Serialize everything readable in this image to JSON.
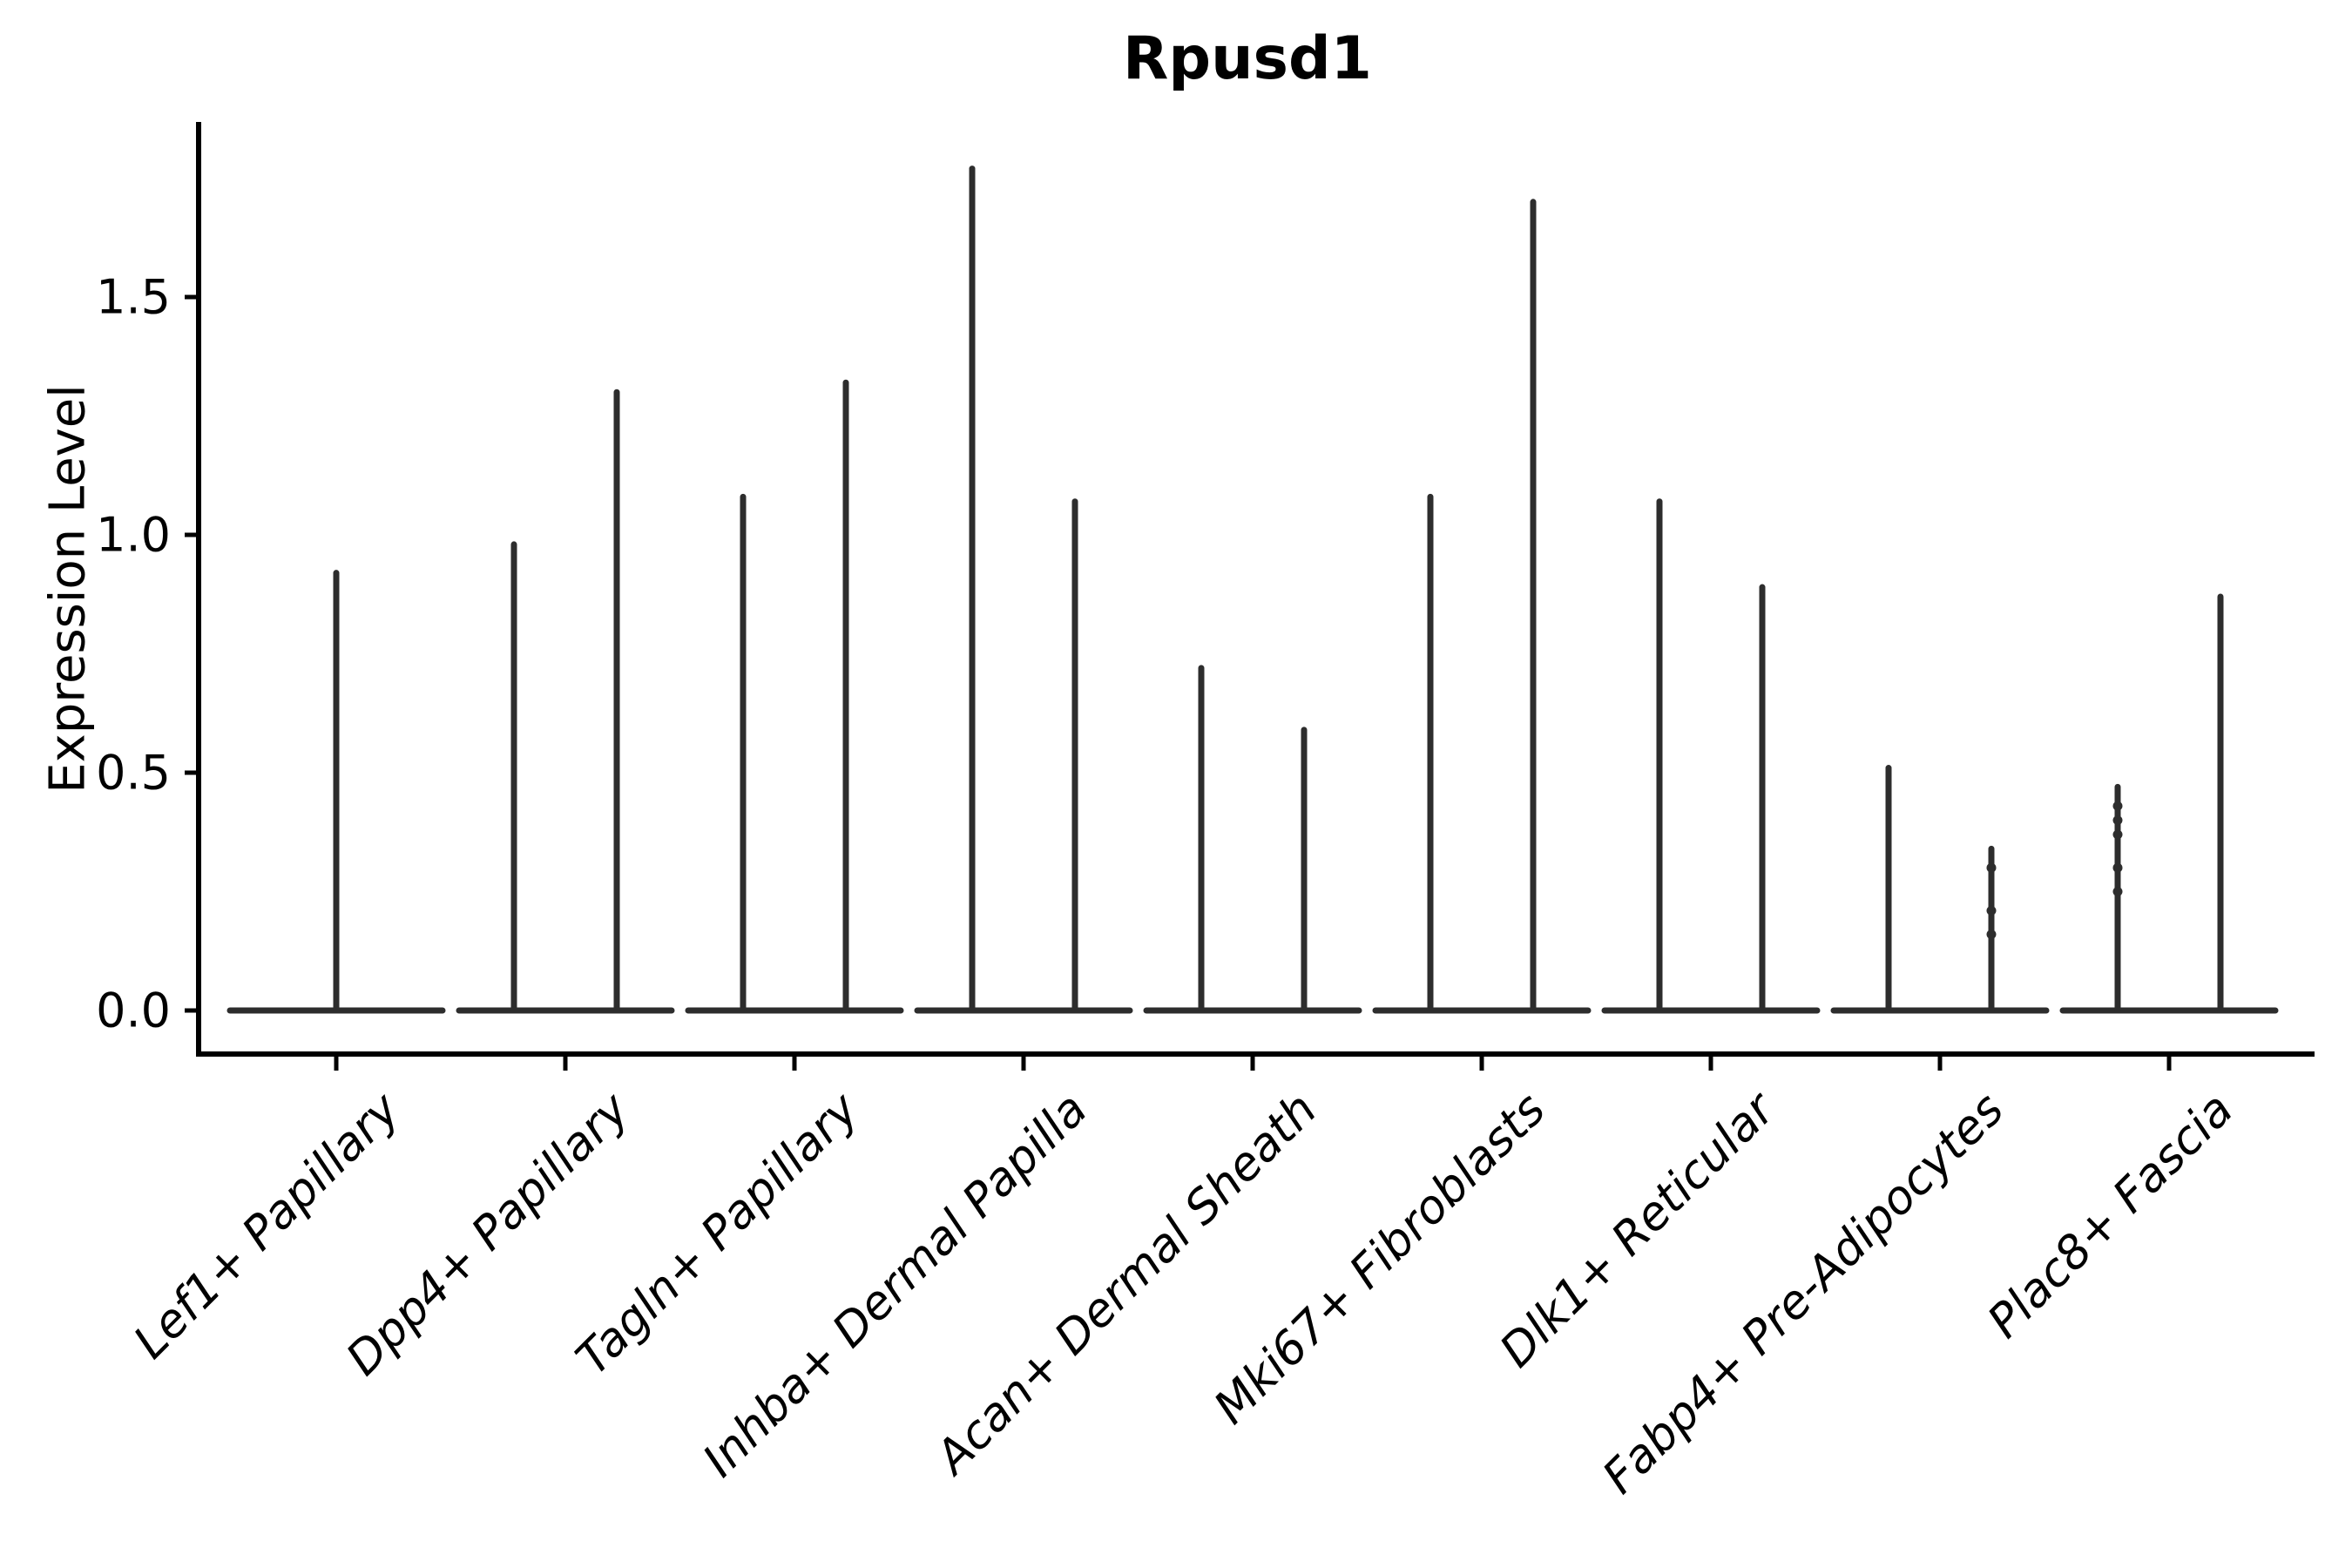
{
  "chart_data": {
    "type": "violin",
    "title": "Rpusd1",
    "ylabel": "Expression Level",
    "xlabel": "",
    "ytick_labels": [
      "0.0",
      "0.5",
      "1.0",
      "1.5"
    ],
    "ytick_values": [
      0.0,
      0.5,
      1.0,
      1.5
    ],
    "ylim": [
      -0.09,
      1.86
    ],
    "grid": false,
    "legend": "none",
    "x_tick_rotation": 45,
    "categories": [
      "Lef1+ Papillary",
      "Dpp4+ Papillary",
      "Tagln+ Papillary",
      "Inhba+ Dermal Papilla",
      "Acan+ Dermal Sheath",
      "Mki67+ Fibroblasts",
      "Dlk1+ Reticular",
      "Fabp4+ Pre-Adipocytes",
      "Plac8+ Fascia"
    ],
    "violins": [
      {
        "category": "Lef1+ Papillary",
        "baseline_value": 0.0,
        "spikes": [
          {
            "pos": "center",
            "max": 0.92,
            "points": []
          }
        ]
      },
      {
        "category": "Dpp4+ Papillary",
        "baseline_value": 0.0,
        "spikes": [
          {
            "pos": "left",
            "max": 0.98,
            "points": []
          },
          {
            "pos": "right",
            "max": 1.3,
            "points": []
          }
        ]
      },
      {
        "category": "Tagln+ Papillary",
        "baseline_value": 0.0,
        "spikes": [
          {
            "pos": "left",
            "max": 1.08,
            "points": []
          },
          {
            "pos": "right",
            "max": 1.32,
            "points": []
          }
        ]
      },
      {
        "category": "Inhba+ Dermal Papilla",
        "baseline_value": 0.0,
        "spikes": [
          {
            "pos": "left",
            "max": 1.77,
            "points": []
          },
          {
            "pos": "right",
            "max": 1.07,
            "points": []
          }
        ]
      },
      {
        "category": "Acan+ Dermal Sheath",
        "baseline_value": 0.0,
        "spikes": [
          {
            "pos": "left",
            "max": 0.72,
            "points": []
          },
          {
            "pos": "right",
            "max": 0.59,
            "points": []
          }
        ]
      },
      {
        "category": "Mki67+ Fibroblasts",
        "baseline_value": 0.0,
        "spikes": [
          {
            "pos": "left",
            "max": 1.08,
            "points": []
          },
          {
            "pos": "right",
            "max": 1.7,
            "points": []
          }
        ]
      },
      {
        "category": "Dlk1+ Reticular",
        "baseline_value": 0.0,
        "spikes": [
          {
            "pos": "left",
            "max": 1.07,
            "points": []
          },
          {
            "pos": "right",
            "max": 0.89,
            "points": []
          }
        ]
      },
      {
        "category": "Fabp4+ Pre-Adipocytes",
        "baseline_value": 0.0,
        "spikes": [
          {
            "pos": "left",
            "max": 0.51,
            "points": []
          },
          {
            "pos": "right",
            "max": 0.34,
            "points": [
              0.3,
              0.21,
              0.16
            ]
          }
        ]
      },
      {
        "category": "Plac8+ Fascia",
        "baseline_value": 0.0,
        "spikes": [
          {
            "pos": "left",
            "max": 0.47,
            "points": [
              0.43,
              0.4,
              0.37,
              0.3,
              0.25
            ]
          },
          {
            "pos": "right",
            "max": 0.87,
            "points": []
          }
        ]
      }
    ],
    "colors": {
      "violin": "#2d2d2d",
      "axis": "#000000",
      "text": "#000000",
      "background": "#ffffff"
    }
  }
}
